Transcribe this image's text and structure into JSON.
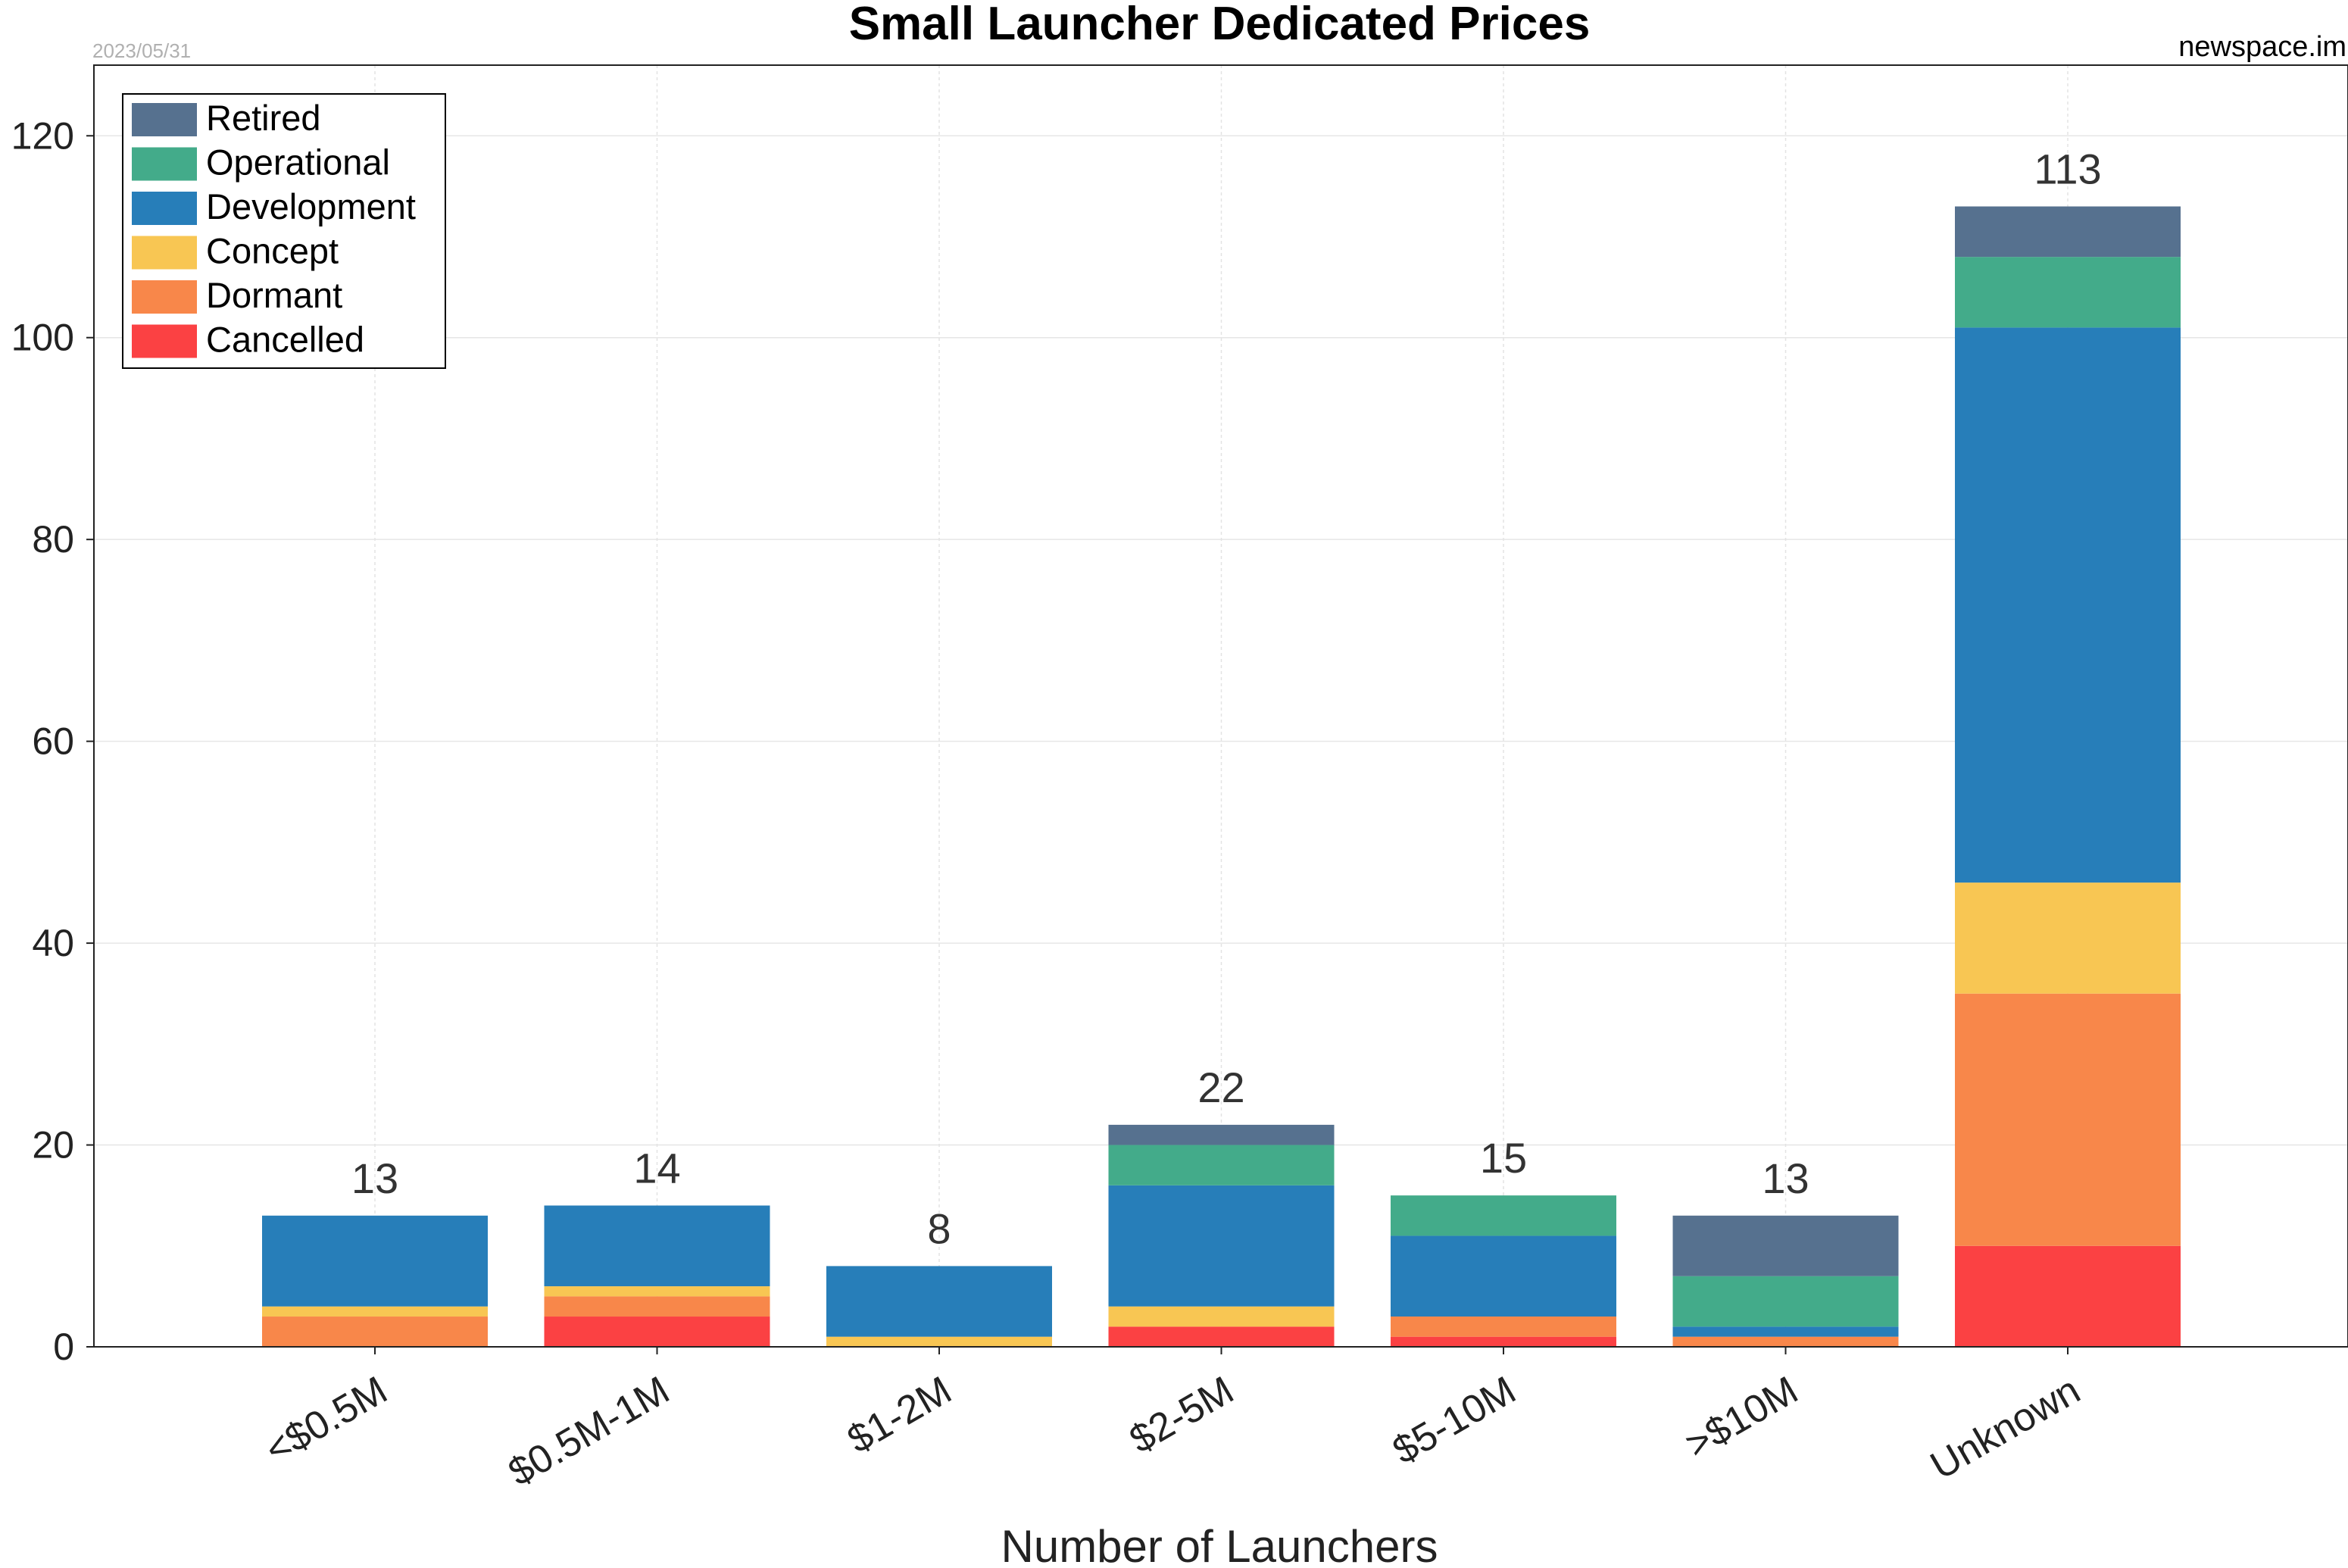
{
  "header": {
    "title": "Small Launcher Dedicated Prices",
    "date": "2023/05/31",
    "source": "newspace.im"
  },
  "chart_data": {
    "type": "bar",
    "stacked": true,
    "title": "Small Launcher Dedicated Prices",
    "xlabel": "Number of Launchers",
    "ylabel": "",
    "ylim": [
      0,
      127
    ],
    "yticks": [
      0,
      20,
      40,
      60,
      80,
      100,
      120
    ],
    "grid": true,
    "legend_position": "top-left",
    "categories": [
      "<$0.5M",
      "$0.5M-1M",
      "$1-2M",
      "$2-5M",
      "$5-10M",
      ">$10M",
      "Unknown"
    ],
    "series": [
      {
        "name": "Cancelled",
        "color": "#fb4143",
        "values": [
          0,
          3,
          0,
          2,
          1,
          0,
          10
        ]
      },
      {
        "name": "Dormant",
        "color": "#f8874a",
        "values": [
          3,
          2,
          0,
          0,
          2,
          1,
          25
        ]
      },
      {
        "name": "Concept",
        "color": "#f8c653",
        "values": [
          1,
          1,
          1,
          2,
          0,
          0,
          11
        ]
      },
      {
        "name": "Development",
        "color": "#277eb9",
        "values": [
          9,
          8,
          7,
          12,
          8,
          1,
          55
        ]
      },
      {
        "name": "Operational",
        "color": "#43ab8a",
        "values": [
          0,
          0,
          0,
          4,
          4,
          5,
          7
        ]
      },
      {
        "name": "Retired",
        "color": "#56718f",
        "values": [
          0,
          0,
          0,
          2,
          0,
          6,
          5
        ]
      }
    ],
    "totals": [
      13,
      14,
      8,
      22,
      15,
      13,
      113
    ]
  }
}
